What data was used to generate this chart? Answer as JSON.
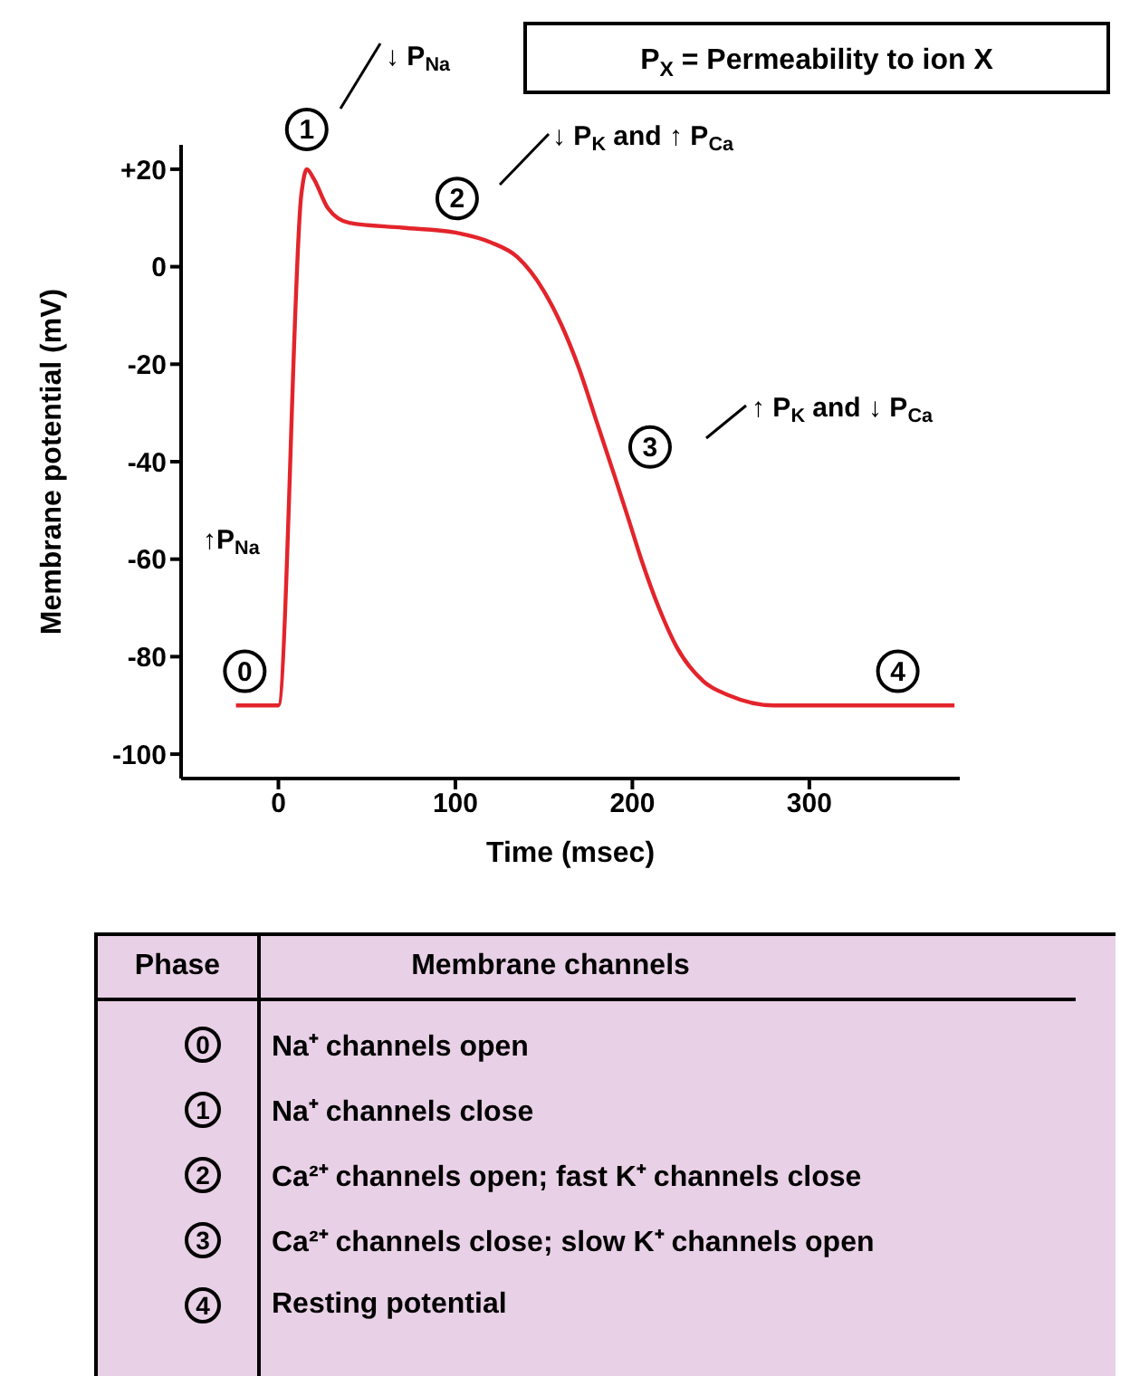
{
  "chart_data": {
    "type": "line",
    "xlabel": "Time (msec)",
    "ylabel": "Membrane potential (mV)",
    "x": [
      -24,
      0,
      13,
      16,
      20,
      28,
      40,
      70,
      100,
      120,
      135,
      150,
      160,
      170,
      180,
      190,
      198,
      205,
      215,
      225,
      240,
      255,
      280,
      382
    ],
    "series": [
      {
        "color": "#e3242b",
        "values": [
          -90,
          -90,
          15,
          20,
          18,
          12,
          9,
          8,
          7,
          5,
          2,
          -5,
          -12,
          -21,
          -32,
          -43,
          -52,
          -60,
          -70,
          -78,
          -85,
          -88,
          -90,
          -90
        ]
      }
    ],
    "xlim": [
      -55,
      385
    ],
    "xticks": [
      0,
      100,
      200,
      300
    ],
    "ylim": [
      -105,
      25
    ],
    "yticks": [
      -100,
      -80,
      -60,
      -40,
      -20,
      0,
      {
        "value": 20,
        "label": "+20"
      }
    ],
    "grid": false,
    "legend": false,
    "marker": "none",
    "line_style": "solid",
    "annotations": [
      {
        "text": "0",
        "x": -19,
        "y": -83
      },
      {
        "text": "1",
        "x": 16,
        "y": 20
      },
      {
        "text": "2",
        "x": 101,
        "y": 14
      },
      {
        "text": "3",
        "x": 210,
        "y": -37
      },
      {
        "text": "4",
        "x": 350,
        "y": -83
      },
      "P$_{X}$ = Permeability to ion X",
      "↓ P$_{Na}$",
      "↓ P$_{K}$ and ↑ P$_{Ca}$",
      "↑ P$_{K}$ and ↓ P$_{Ca}$",
      "↑P$_{Na}$",
      "Phase",
      "Membrane channels",
      "0",
      "Na⁺ channels open",
      "1",
      "Na⁺ channels close",
      "2",
      "Ca²⁺ channels open; fast K⁺ channels close",
      "3",
      "Ca²⁺ channels close; slow K⁺ channels open",
      "4",
      "Resting potential"
    ]
  }
}
